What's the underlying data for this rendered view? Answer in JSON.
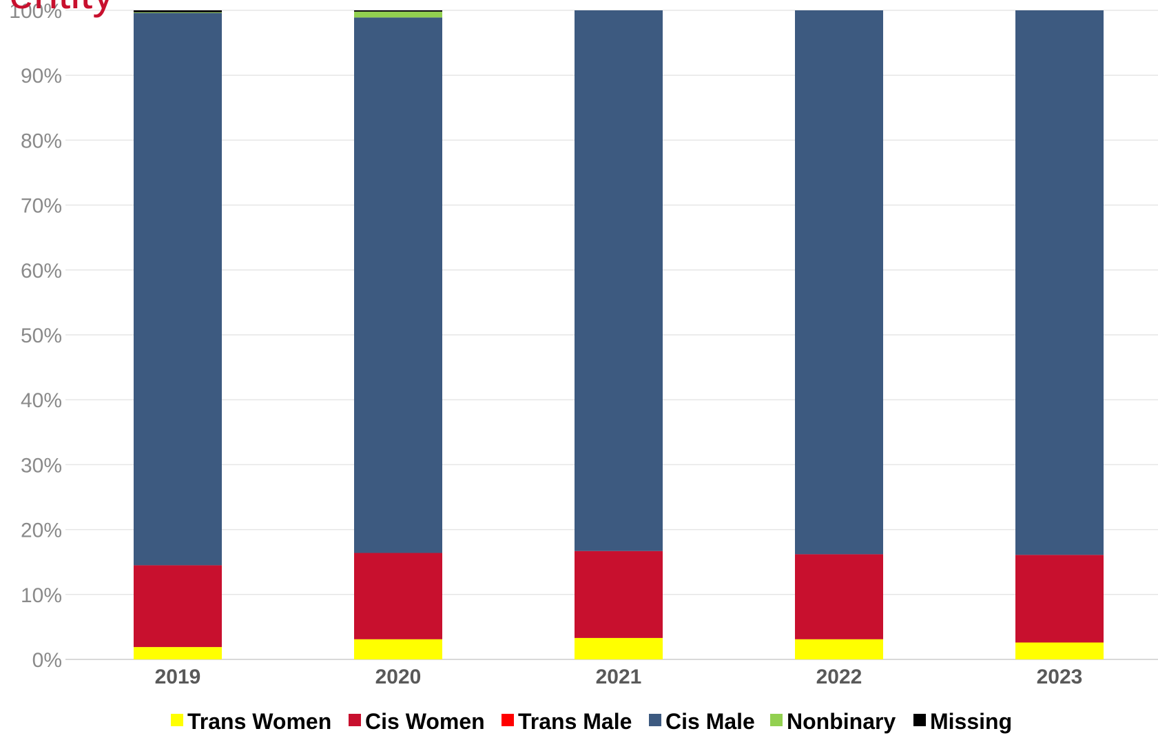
{
  "chart_data": {
    "type": "bar",
    "stacked": true,
    "title_fragment": "-entity",
    "categories": [
      "2019",
      "2020",
      "2021",
      "2022",
      "2023"
    ],
    "ylim": [
      0,
      100
    ],
    "yticks": [
      "0%",
      "10%",
      "20%",
      "30%",
      "40%",
      "50%",
      "60%",
      "70%",
      "80%",
      "90%",
      "100%"
    ],
    "grid": true,
    "legend_position": "bottom",
    "series": [
      {
        "name": "Trans Women",
        "color": "#ffff00",
        "values": [
          1.9,
          3.1,
          3.3,
          3.1,
          2.6
        ]
      },
      {
        "name": "Cis Women",
        "color": "#c8102e",
        "values": [
          12.6,
          13.3,
          13.4,
          13.1,
          13.5
        ]
      },
      {
        "name": "Trans Male",
        "color": "#ff0000",
        "values": [
          0,
          0,
          0,
          0,
          0
        ]
      },
      {
        "name": "Cis Male",
        "color": "#3d5a80",
        "values": [
          85.1,
          82.5,
          83.3,
          83.8,
          83.9
        ]
      },
      {
        "name": "Nonbinary",
        "color": "#92d050",
        "values": [
          0.1,
          0.9,
          0,
          0,
          0
        ]
      },
      {
        "name": "Missing",
        "color": "#000000",
        "values": [
          0.3,
          0.2,
          0,
          0,
          0
        ]
      }
    ]
  }
}
